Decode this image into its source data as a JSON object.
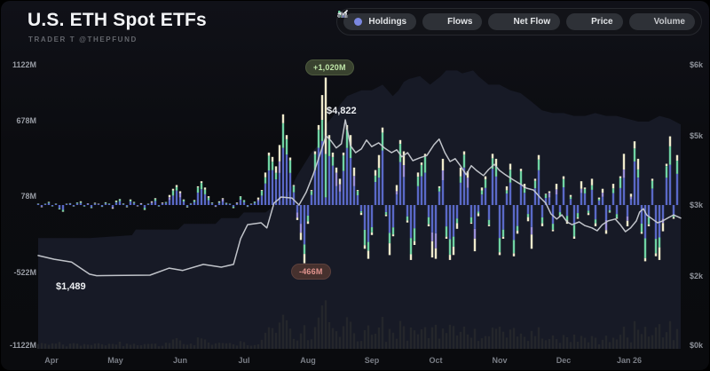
{
  "header": {
    "title": "U.S. ETH Spot ETFs",
    "subtitle": "TRADER T @THEPFUND"
  },
  "toolbar": {
    "buttons": [
      {
        "id": "holdings",
        "label": "Holdings",
        "active": true
      },
      {
        "id": "flows",
        "label": "Flows",
        "active": true
      },
      {
        "id": "netflow",
        "label": "Net Flow",
        "active": true
      },
      {
        "id": "price",
        "label": "Price",
        "active": true
      },
      {
        "id": "volume",
        "label": "Volume",
        "active": false
      }
    ]
  },
  "colors": {
    "bar_blue": "#5a69c7",
    "bar_green": "#6fd3a3",
    "bar_cream": "#efeacc",
    "bar_purple": "#9a8fd8",
    "price_line": "#c9ccd2",
    "holdings_fill": "#171a26",
    "volume_fill": "#24262b",
    "badge_pos_text": "#bfe6a8",
    "badge_neg_text": "#e2948e"
  },
  "chart_data": {
    "type": "mixed",
    "title": "U.S. ETH Spot ETFs",
    "legend": [
      "Holdings",
      "Flows",
      "Net Flow",
      "Price",
      "Volume"
    ],
    "left_axis": {
      "labels": [
        "1122M",
        "678M",
        "78M",
        "-522M",
        "-1122M"
      ],
      "unit": "M"
    },
    "right_axis": {
      "labels": [
        "$6k",
        "$5k",
        "$3k",
        "$2k",
        "$0k"
      ],
      "unit": "$"
    },
    "x_axis": {
      "labels": [
        "Apr",
        "May",
        "Jun",
        "Jul",
        "Aug",
        "Sep",
        "Oct",
        "Nov",
        "Dec",
        "Jan 26"
      ]
    },
    "annotations": {
      "max_flow": "+1,020M",
      "min_flow": "-466M",
      "max_price": "$4,822",
      "min_price": "$1,489"
    },
    "series": {
      "flows_millions": [
        12,
        -18,
        8,
        25,
        -10,
        6,
        -35,
        -55,
        10,
        15,
        -12,
        20,
        30,
        -8,
        14,
        -25,
        18,
        10,
        -15,
        22,
        8,
        -30,
        35,
        48,
        12,
        -18,
        45,
        25,
        -10,
        15,
        -40,
        10,
        30,
        55,
        -12,
        20,
        25,
        80,
        130,
        160,
        110,
        45,
        -20,
        15,
        40,
        150,
        190,
        140,
        70,
        20,
        -15,
        30,
        55,
        18,
        12,
        -25,
        20,
        70,
        40,
        -15,
        10,
        28,
        60,
        120,
        260,
        420,
        385,
        310,
        480,
        726,
        560,
        380,
        160,
        -120,
        -280,
        -466,
        -150,
        120,
        430,
        640,
        880,
        1020,
        560,
        420,
        300,
        210,
        420,
        640,
        560,
        300,
        120,
        -80,
        -350,
        -430,
        -240,
        280,
        400,
        620,
        -90,
        -400,
        -250,
        160,
        520,
        430,
        -140,
        -440,
        -320,
        260,
        340,
        410,
        -170,
        -420,
        -430,
        150,
        370,
        -270,
        -440,
        -400,
        -190,
        300,
        430,
        270,
        -150,
        -370,
        -90,
        140,
        230,
        -170,
        410,
        370,
        -400,
        -270,
        150,
        330,
        -410,
        -230,
        290,
        170,
        -130,
        -350,
        210,
        400,
        -170,
        90,
        110,
        -210,
        170,
        -90,
        230,
        -150,
        80,
        -270,
        -110,
        190,
        140,
        -80,
        210,
        -170,
        60,
        130,
        -230,
        -60,
        170,
        -110,
        230,
        410,
        -170,
        90,
        510,
        370,
        -230,
        -450,
        -170,
        210,
        -410,
        -440,
        -210,
        330,
        550,
        -110,
        400
      ],
      "price_usd": [
        [
          0,
          1920
        ],
        [
          0.025,
          1840
        ],
        [
          0.052,
          1780
        ],
        [
          0.08,
          1520
        ],
        [
          0.091,
          1489
        ],
        [
          0.101,
          1490
        ],
        [
          0.135,
          1495
        ],
        [
          0.174,
          1500
        ],
        [
          0.204,
          1650
        ],
        [
          0.225,
          1600
        ],
        [
          0.257,
          1730
        ],
        [
          0.285,
          1670
        ],
        [
          0.304,
          1730
        ],
        [
          0.315,
          2280
        ],
        [
          0.326,
          2580
        ],
        [
          0.347,
          2620
        ],
        [
          0.356,
          2510
        ],
        [
          0.367,
          3040
        ],
        [
          0.378,
          3170
        ],
        [
          0.395,
          3150
        ],
        [
          0.406,
          3000
        ],
        [
          0.417,
          3270
        ],
        [
          0.428,
          3650
        ],
        [
          0.439,
          4100
        ],
        [
          0.448,
          4480
        ],
        [
          0.456,
          4370
        ],
        [
          0.464,
          4220
        ],
        [
          0.472,
          4310
        ],
        [
          0.478,
          4822
        ],
        [
          0.486,
          4270
        ],
        [
          0.494,
          4120
        ],
        [
          0.503,
          4200
        ],
        [
          0.511,
          4390
        ],
        [
          0.519,
          4250
        ],
        [
          0.53,
          4330
        ],
        [
          0.539,
          4220
        ],
        [
          0.55,
          4120
        ],
        [
          0.558,
          4180
        ],
        [
          0.566,
          4030
        ],
        [
          0.575,
          4120
        ],
        [
          0.583,
          3950
        ],
        [
          0.594,
          4010
        ],
        [
          0.605,
          4060
        ],
        [
          0.616,
          4290
        ],
        [
          0.624,
          4410
        ],
        [
          0.633,
          4120
        ],
        [
          0.641,
          3930
        ],
        [
          0.649,
          3990
        ],
        [
          0.657,
          3840
        ],
        [
          0.666,
          3650
        ],
        [
          0.674,
          3840
        ],
        [
          0.682,
          3740
        ],
        [
          0.693,
          3630
        ],
        [
          0.701,
          3760
        ],
        [
          0.71,
          3870
        ],
        [
          0.718,
          3740
        ],
        [
          0.727,
          3650
        ],
        [
          0.738,
          3550
        ],
        [
          0.749,
          3460
        ],
        [
          0.76,
          3360
        ],
        [
          0.771,
          3320
        ],
        [
          0.782,
          3150
        ],
        [
          0.79,
          3040
        ],
        [
          0.798,
          2810
        ],
        [
          0.807,
          2700
        ],
        [
          0.815,
          2790
        ],
        [
          0.823,
          2640
        ],
        [
          0.831,
          2580
        ],
        [
          0.842,
          2640
        ],
        [
          0.851,
          2560
        ],
        [
          0.862,
          2510
        ],
        [
          0.87,
          2450
        ],
        [
          0.878,
          2580
        ],
        [
          0.887,
          2660
        ],
        [
          0.898,
          2700
        ],
        [
          0.906,
          2580
        ],
        [
          0.914,
          2430
        ],
        [
          0.922,
          2510
        ],
        [
          0.931,
          2660
        ],
        [
          0.936,
          2850
        ],
        [
          0.942,
          2920
        ],
        [
          0.947,
          2790
        ],
        [
          0.956,
          2700
        ],
        [
          0.964,
          2620
        ],
        [
          0.972,
          2660
        ],
        [
          0.981,
          2730
        ],
        [
          0.989,
          2790
        ],
        [
          1,
          2720
        ]
      ],
      "holdings_relative": [
        [
          0,
          39
        ],
        [
          0.08,
          39
        ],
        [
          0.146,
          40
        ],
        [
          0.152,
          42
        ],
        [
          0.218,
          42
        ],
        [
          0.227,
          44
        ],
        [
          0.276,
          44
        ],
        [
          0.285,
          46
        ],
        [
          0.312,
          46
        ],
        [
          0.32,
          48
        ],
        [
          0.354,
          48
        ],
        [
          0.365,
          50
        ],
        [
          0.378,
          52
        ],
        [
          0.392,
          56
        ],
        [
          0.403,
          61
        ],
        [
          0.414,
          65
        ],
        [
          0.425,
          69
        ],
        [
          0.437,
          72
        ],
        [
          0.448,
          79
        ],
        [
          0.459,
          82
        ],
        [
          0.47,
          86
        ],
        [
          0.481,
          89
        ],
        [
          0.492,
          90
        ],
        [
          0.503,
          91
        ],
        [
          0.519,
          91
        ],
        [
          0.536,
          93
        ],
        [
          0.544,
          91
        ],
        [
          0.552,
          89
        ],
        [
          0.561,
          91
        ],
        [
          0.569,
          94
        ],
        [
          0.577,
          95
        ],
        [
          0.594,
          96
        ],
        [
          0.61,
          93
        ],
        [
          0.627,
          96
        ],
        [
          0.635,
          98
        ],
        [
          0.652,
          98
        ],
        [
          0.66,
          97
        ],
        [
          0.677,
          98
        ],
        [
          0.685,
          96
        ],
        [
          0.701,
          93
        ],
        [
          0.718,
          93
        ],
        [
          0.735,
          91
        ],
        [
          0.751,
          90
        ],
        [
          0.768,
          87
        ],
        [
          0.784,
          84
        ],
        [
          0.801,
          83
        ],
        [
          0.818,
          83
        ],
        [
          0.834,
          82
        ],
        [
          0.851,
          82
        ],
        [
          0.867,
          83
        ],
        [
          0.884,
          82
        ],
        [
          0.9,
          82
        ],
        [
          0.917,
          81
        ],
        [
          0.934,
          80
        ],
        [
          0.95,
          80
        ],
        [
          0.967,
          82
        ],
        [
          0.983,
          81
        ],
        [
          1,
          79
        ]
      ]
    }
  }
}
